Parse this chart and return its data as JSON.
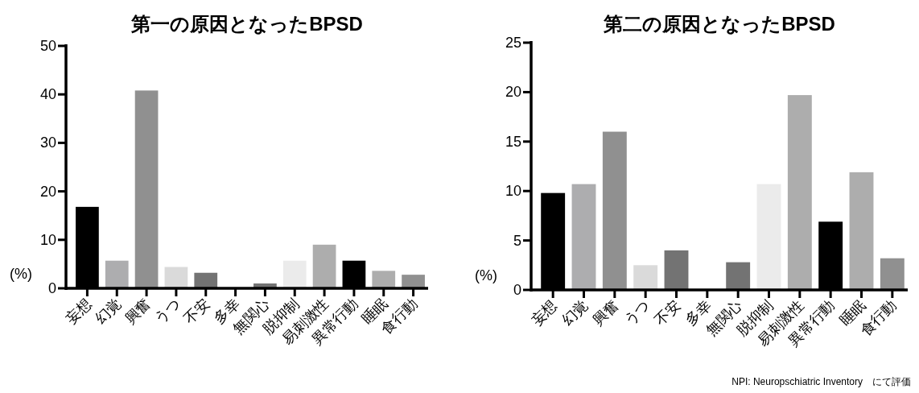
{
  "chart_data": [
    {
      "type": "bar",
      "title": "第一の原因となったBPSD",
      "ylabel": "(%)",
      "categories": [
        "妄想",
        "幻覚",
        "興奮",
        "うつ",
        "不安",
        "多幸",
        "無関心",
        "脱抑制",
        "易刺激性",
        "異常行動",
        "睡眠",
        "食行動"
      ],
      "values": [
        16.8,
        5.7,
        40.8,
        4.4,
        3.2,
        0,
        1.0,
        5.7,
        9.0,
        5.7,
        3.6,
        2.8
      ],
      "colors": [
        "#000000",
        "#adadaf",
        "#909090",
        "#dadada",
        "#737373",
        "#737373",
        "#737373",
        "#ebebeb",
        "#adadad",
        "#000000",
        "#adadad",
        "#909090"
      ],
      "ylim": [
        0,
        50
      ],
      "yticks": [
        0,
        10,
        20,
        30,
        40,
        50
      ],
      "grid": false
    },
    {
      "type": "bar",
      "title": "第二の原因となったBPSD",
      "ylabel": "(%)",
      "categories": [
        "妄想",
        "幻覚",
        "興奮",
        "うつ",
        "不安",
        "多幸",
        "無関心",
        "脱抑制",
        "易刺激性",
        "異常行動",
        "睡眠",
        "食行動"
      ],
      "values": [
        9.8,
        10.7,
        16.0,
        2.5,
        4.0,
        0,
        2.8,
        10.7,
        19.7,
        6.9,
        11.9,
        3.2
      ],
      "colors": [
        "#000000",
        "#adadaf",
        "#909090",
        "#dadada",
        "#737373",
        "#737373",
        "#737373",
        "#ebebeb",
        "#adadad",
        "#000000",
        "#adadad",
        "#909090"
      ],
      "ylim": [
        0,
        25
      ],
      "yticks": [
        0,
        5,
        10,
        15,
        20,
        25
      ],
      "grid": false,
      "annotations": [
        "NPI: Neuropschiatric Inventory　にて評価"
      ]
    }
  ]
}
